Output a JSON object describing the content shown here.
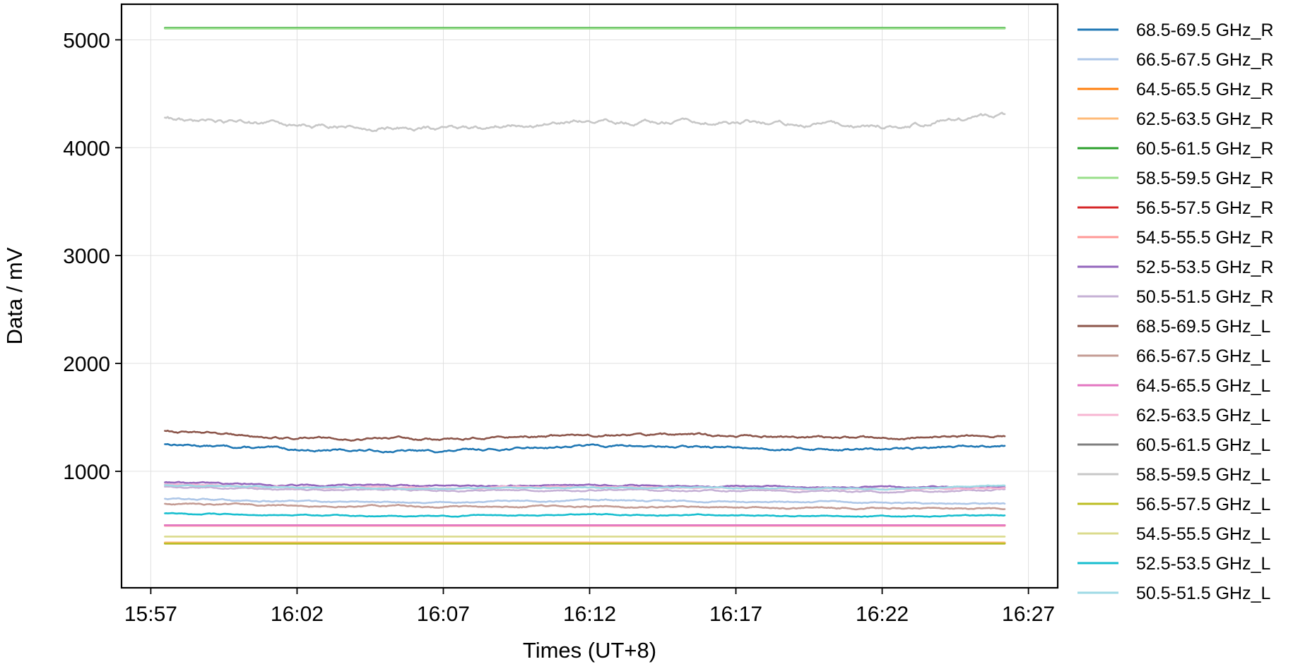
{
  "chart_data": {
    "type": "line",
    "title": "",
    "xlabel": "Times (UT+8)",
    "ylabel": "Data / mV",
    "x_ticks": [
      "15:57",
      "16:02",
      "16:07",
      "16:12",
      "16:17",
      "16:22",
      "16:27"
    ],
    "x_range": [
      "15:56",
      "16:28"
    ],
    "y_ticks": [
      1000,
      2000,
      3000,
      4000,
      5000
    ],
    "ylim": [
      -80,
      5330
    ],
    "grid": true,
    "legend_position": "outside-right",
    "series": [
      {
        "name": "68.5-69.5 GHz_R",
        "color": "#1f77b4",
        "x": [
          "15:57",
          "16:02",
          "16:07",
          "16:12",
          "16:17",
          "16:22",
          "16:27"
        ],
        "values": [
          1260,
          1200,
          1185,
          1240,
          1220,
          1200,
          1255
        ]
      },
      {
        "name": "66.5-67.5 GHz_R",
        "color": "#aec7e8",
        "x": [
          "15:57",
          "16:02",
          "16:07",
          "16:12",
          "16:17",
          "16:22",
          "16:27"
        ],
        "values": [
          750,
          720,
          715,
          730,
          720,
          710,
          700
        ]
      },
      {
        "name": "64.5-65.5 GHz_R",
        "color": "#ff7f0e",
        "x": [
          "15:57",
          "16:02",
          "16:07",
          "16:12",
          "16:17",
          "16:22",
          "16:27"
        ],
        "values": [
          335,
          335,
          335,
          335,
          335,
          335,
          335
        ]
      },
      {
        "name": "62.5-63.5 GHz_R",
        "color": "#ffbb78",
        "x": [
          "15:57",
          "16:02",
          "16:07",
          "16:12",
          "16:17",
          "16:22",
          "16:27"
        ],
        "values": [
          340,
          340,
          340,
          340,
          340,
          340,
          340
        ]
      },
      {
        "name": "60.5-61.5 GHz_R",
        "color": "#2ca02c",
        "x": [
          "15:57",
          "16:02",
          "16:07",
          "16:12",
          "16:17",
          "16:22",
          "16:27"
        ],
        "values": [
          5110,
          5110,
          5110,
          5110,
          5110,
          5110,
          5110
        ]
      },
      {
        "name": "58.5-59.5 GHz_R",
        "color": "#98df8a",
        "x": [
          "15:57",
          "16:02",
          "16:07",
          "16:12",
          "16:17",
          "16:22",
          "16:27"
        ],
        "values": [
          5105,
          5105,
          5105,
          5105,
          5105,
          5105,
          5105
        ]
      },
      {
        "name": "56.5-57.5 GHz_R",
        "color": "#d62728",
        "x": [
          "15:57",
          "16:02",
          "16:07",
          "16:12",
          "16:17",
          "16:22",
          "16:27"
        ],
        "values": [
          500,
          500,
          500,
          500,
          500,
          500,
          500
        ]
      },
      {
        "name": "54.5-55.5 GHz_R",
        "color": "#ff9896",
        "x": [
          "15:57",
          "16:02",
          "16:07",
          "16:12",
          "16:17",
          "16:22",
          "16:27"
        ],
        "values": [
          495,
          495,
          495,
          495,
          495,
          495,
          495
        ]
      },
      {
        "name": "52.5-53.5 GHz_R",
        "color": "#9467bd",
        "x": [
          "15:57",
          "16:02",
          "16:07",
          "16:12",
          "16:17",
          "16:22",
          "16:27"
        ],
        "values": [
          900,
          870,
          860,
          870,
          860,
          850,
          860
        ]
      },
      {
        "name": "50.5-51.5 GHz_R",
        "color": "#c5b0d5",
        "x": [
          "15:57",
          "16:02",
          "16:07",
          "16:12",
          "16:17",
          "16:22",
          "16:27"
        ],
        "values": [
          860,
          830,
          820,
          830,
          820,
          810,
          830
        ]
      },
      {
        "name": "68.5-69.5 GHz_L",
        "color": "#8c564b",
        "x": [
          "15:57",
          "16:02",
          "16:07",
          "16:12",
          "16:17",
          "16:22",
          "16:27"
        ],
        "values": [
          1380,
          1310,
          1300,
          1340,
          1330,
          1300,
          1345
        ]
      },
      {
        "name": "66.5-67.5 GHz_L",
        "color": "#c49c94",
        "x": [
          "15:57",
          "16:02",
          "16:07",
          "16:12",
          "16:17",
          "16:22",
          "16:27"
        ],
        "values": [
          700,
          680,
          670,
          675,
          665,
          660,
          650
        ]
      },
      {
        "name": "64.5-65.5 GHz_L",
        "color": "#e377c2",
        "x": [
          "15:57",
          "16:02",
          "16:07",
          "16:12",
          "16:17",
          "16:22",
          "16:27"
        ],
        "values": [
          500,
          500,
          500,
          500,
          500,
          500,
          500
        ]
      },
      {
        "name": "62.5-63.5 GHz_L",
        "color": "#f7b6d2",
        "x": [
          "15:57",
          "16:02",
          "16:07",
          "16:12",
          "16:17",
          "16:22",
          "16:27"
        ],
        "values": [
          880,
          850,
          845,
          855,
          845,
          835,
          850
        ]
      },
      {
        "name": "60.5-61.5 GHz_L",
        "color": "#7f7f7f",
        "x": [
          "15:57",
          "16:02",
          "16:07",
          "16:12",
          "16:17",
          "16:22",
          "16:27"
        ],
        "values": [
          330,
          330,
          330,
          330,
          330,
          330,
          330
        ]
      },
      {
        "name": "58.5-59.5 GHz_L",
        "color": "#c7c7c7",
        "x": [
          "15:57",
          "16:02",
          "16:07",
          "16:12",
          "16:17",
          "16:22",
          "16:27"
        ],
        "values": [
          4280,
          4200,
          4180,
          4250,
          4240,
          4200,
          4320
        ]
      },
      {
        "name": "56.5-57.5 GHz_L",
        "color": "#bcbd22",
        "x": [
          "15:57",
          "16:02",
          "16:07",
          "16:12",
          "16:17",
          "16:22",
          "16:27"
        ],
        "values": [
          330,
          330,
          330,
          330,
          330,
          330,
          330
        ]
      },
      {
        "name": "54.5-55.5 GHz_L",
        "color": "#dbdb8d",
        "x": [
          "15:57",
          "16:02",
          "16:07",
          "16:12",
          "16:17",
          "16:22",
          "16:27"
        ],
        "values": [
          395,
          395,
          395,
          395,
          395,
          395,
          395
        ]
      },
      {
        "name": "52.5-53.5 GHz_L",
        "color": "#17becf",
        "x": [
          "15:57",
          "16:02",
          "16:07",
          "16:12",
          "16:17",
          "16:22",
          "16:27"
        ],
        "values": [
          610,
          590,
          585,
          600,
          590,
          580,
          595
        ]
      },
      {
        "name": "50.5-51.5 GHz_L",
        "color": "#9edae5",
        "x": [
          "15:57",
          "16:02",
          "16:07",
          "16:12",
          "16:17",
          "16:22",
          "16:27"
        ],
        "values": [
          870,
          850,
          840,
          850,
          845,
          835,
          875
        ]
      }
    ]
  }
}
